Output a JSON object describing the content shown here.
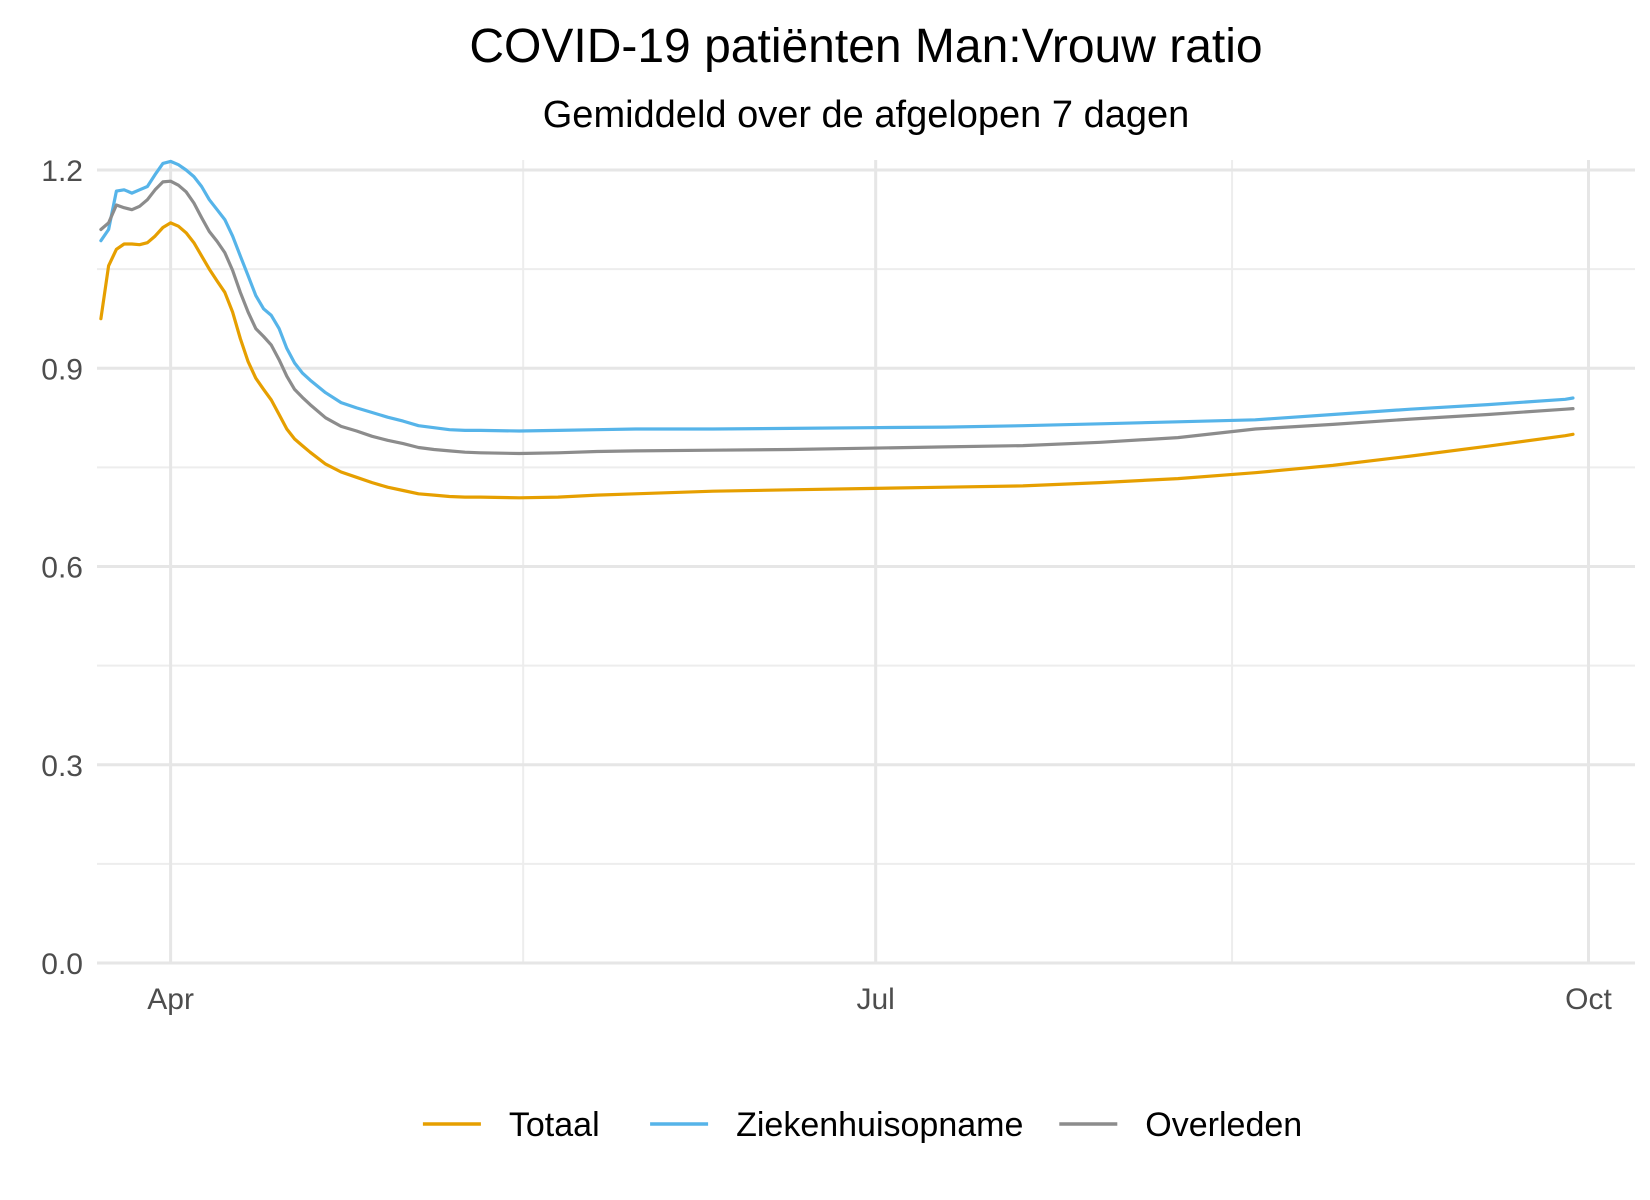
{
  "chart_data": {
    "type": "line",
    "title": "COVID-19 patiënten Man:Vrouw ratio",
    "subtitle": "Gemiddeld over de afgelopen 7 dagen",
    "xlabel": "",
    "ylabel": "",
    "x_unit": "day index (0 = 1 april 2020)",
    "xlim": [
      -9.5,
      189
    ],
    "ylim": [
      0,
      1.2
    ],
    "y_ticks": [
      {
        "value": 0.0,
        "label": "0.0"
      },
      {
        "value": 0.3,
        "label": "0.3"
      },
      {
        "value": 0.6,
        "label": "0.6"
      },
      {
        "value": 0.9,
        "label": "0.9"
      },
      {
        "value": 1.2,
        "label": "1.2"
      }
    ],
    "y_minor_ticks": [
      0.15,
      0.45,
      0.75,
      1.05
    ],
    "x_ticks": [
      {
        "value": 0,
        "label": "Apr"
      },
      {
        "value": 91,
        "label": "Jul"
      },
      {
        "value": 183,
        "label": "Oct"
      }
    ],
    "x_minor_ticks": [
      45.5,
      137
    ],
    "grid": true,
    "legend_position": "bottom",
    "series": [
      {
        "name": "Totaal",
        "color": "#E69F00",
        "x": [
          -9,
          -8,
          -7,
          -6,
          -5,
          -4,
          -3,
          -2,
          -1,
          0,
          1,
          2,
          3,
          4,
          5,
          6,
          7,
          8,
          9,
          10,
          11,
          12,
          13,
          14,
          15,
          16,
          17,
          18,
          20,
          22,
          24,
          26,
          28,
          30,
          32,
          34,
          36,
          38,
          40,
          45,
          50,
          55,
          60,
          70,
          80,
          90,
          100,
          110,
          120,
          130,
          140,
          150,
          160,
          170,
          180,
          181
        ],
        "values": [
          0.975,
          1.055,
          1.08,
          1.088,
          1.088,
          1.087,
          1.09,
          1.1,
          1.113,
          1.12,
          1.115,
          1.105,
          1.09,
          1.07,
          1.05,
          1.032,
          1.015,
          0.985,
          0.945,
          0.91,
          0.885,
          0.868,
          0.852,
          0.83,
          0.808,
          0.793,
          0.783,
          0.773,
          0.755,
          0.743,
          0.735,
          0.727,
          0.72,
          0.715,
          0.71,
          0.708,
          0.706,
          0.705,
          0.705,
          0.704,
          0.705,
          0.708,
          0.71,
          0.714,
          0.716,
          0.718,
          0.72,
          0.722,
          0.727,
          0.733,
          0.742,
          0.753,
          0.767,
          0.782,
          0.798,
          0.8
        ]
      },
      {
        "name": "Ziekenhuisopname",
        "color": "#56B4E9",
        "x": [
          -9,
          -8,
          -7,
          -6,
          -5,
          -4,
          -3,
          -2,
          -1,
          0,
          1,
          2,
          3,
          4,
          5,
          6,
          7,
          8,
          9,
          10,
          11,
          12,
          13,
          14,
          15,
          16,
          17,
          18,
          20,
          22,
          24,
          26,
          28,
          30,
          32,
          34,
          36,
          38,
          40,
          45,
          50,
          55,
          60,
          70,
          80,
          90,
          100,
          110,
          120,
          130,
          140,
          150,
          160,
          170,
          180,
          181
        ],
        "values": [
          1.093,
          1.11,
          1.168,
          1.17,
          1.165,
          1.17,
          1.175,
          1.193,
          1.21,
          1.213,
          1.208,
          1.2,
          1.19,
          1.175,
          1.155,
          1.14,
          1.125,
          1.1,
          1.07,
          1.04,
          1.01,
          0.99,
          0.98,
          0.96,
          0.93,
          0.908,
          0.893,
          0.882,
          0.863,
          0.848,
          0.84,
          0.833,
          0.826,
          0.82,
          0.813,
          0.81,
          0.807,
          0.806,
          0.806,
          0.805,
          0.806,
          0.807,
          0.808,
          0.808,
          0.809,
          0.81,
          0.811,
          0.813,
          0.816,
          0.819,
          0.822,
          0.83,
          0.838,
          0.845,
          0.853,
          0.855
        ]
      },
      {
        "name": "Overleden",
        "color": "#8C8C8C",
        "x": [
          -9,
          -8,
          -7,
          -6,
          -5,
          -4,
          -3,
          -2,
          -1,
          0,
          1,
          2,
          3,
          4,
          5,
          6,
          7,
          8,
          9,
          10,
          11,
          12,
          13,
          14,
          15,
          16,
          17,
          18,
          20,
          22,
          24,
          26,
          28,
          30,
          32,
          34,
          36,
          38,
          40,
          45,
          50,
          55,
          60,
          70,
          80,
          90,
          100,
          110,
          120,
          130,
          140,
          150,
          160,
          170,
          180,
          181
        ],
        "values": [
          1.11,
          1.12,
          1.147,
          1.143,
          1.14,
          1.145,
          1.155,
          1.17,
          1.182,
          1.183,
          1.177,
          1.167,
          1.15,
          1.128,
          1.107,
          1.092,
          1.075,
          1.048,
          1.015,
          0.985,
          0.96,
          0.948,
          0.935,
          0.913,
          0.888,
          0.868,
          0.856,
          0.845,
          0.825,
          0.812,
          0.805,
          0.797,
          0.791,
          0.786,
          0.78,
          0.777,
          0.775,
          0.773,
          0.772,
          0.771,
          0.772,
          0.774,
          0.775,
          0.776,
          0.777,
          0.779,
          0.781,
          0.783,
          0.788,
          0.795,
          0.808,
          0.815,
          0.823,
          0.83,
          0.838,
          0.839
        ]
      }
    ]
  }
}
